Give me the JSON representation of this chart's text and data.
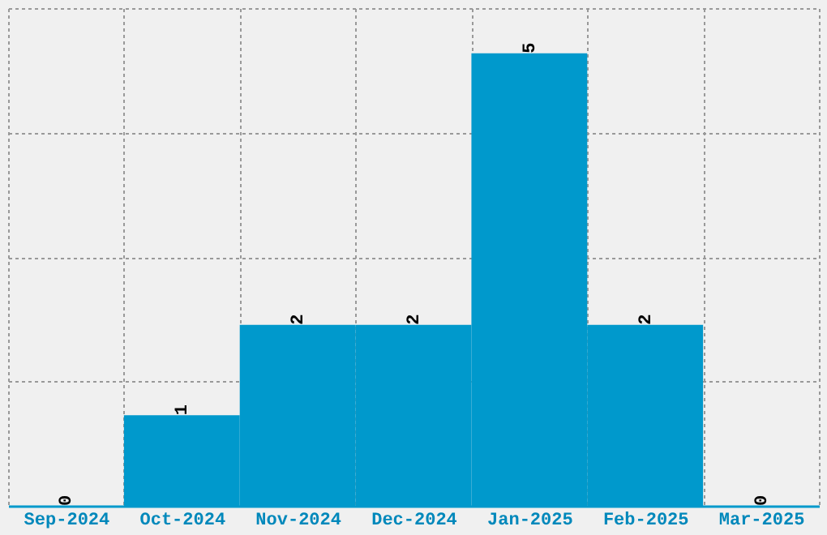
{
  "chart_data": {
    "type": "bar",
    "categories": [
      "Sep-2024",
      "Oct-2024",
      "Nov-2024",
      "Dec-2024",
      "Jan-2025",
      "Feb-2025",
      "Mar-2025"
    ],
    "values": [
      0,
      1,
      2,
      2,
      5,
      2,
      0
    ],
    "color": "#0099cc",
    "ylim": [
      0,
      5.5
    ],
    "yticks": [
      {
        "value": 0,
        "label": null
      },
      {
        "value": 1.375,
        "label": null
      },
      {
        "value": 2.75,
        "label": null
      },
      {
        "value": 4.125,
        "label": null
      },
      {
        "value": 5.5,
        "label": null
      }
    ],
    "grid": true,
    "data_labels": true,
    "tick_labels": "x"
  }
}
